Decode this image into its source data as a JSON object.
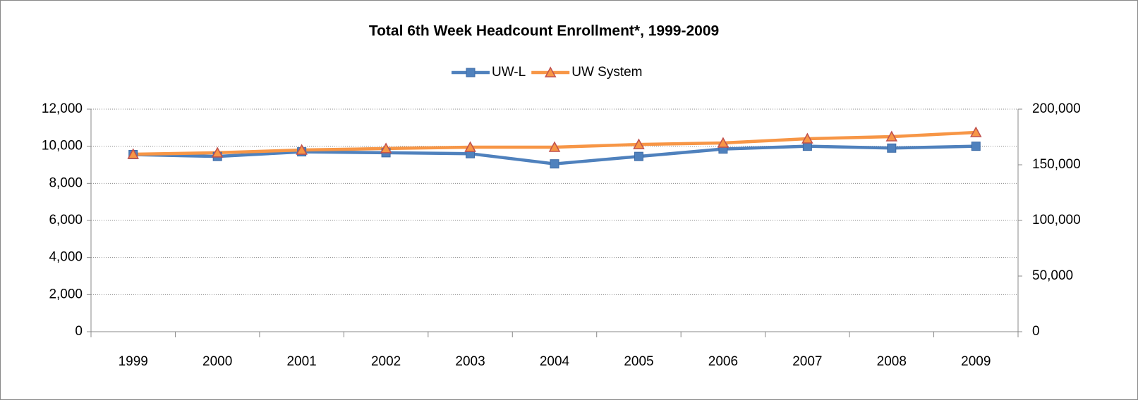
{
  "chart_data": {
    "type": "line",
    "title": "Total 6th Week Headcount Enrollment*, 1999-2009",
    "categories": [
      "1999",
      "2000",
      "2001",
      "2002",
      "2003",
      "2004",
      "2005",
      "2006",
      "2007",
      "2008",
      "2009"
    ],
    "series": [
      {
        "name": "UW-L",
        "color": "#4f81bd",
        "values": [
          9550,
          9450,
          9700,
          9650,
          9600,
          9050,
          9450,
          9850,
          10000,
          9900,
          10000
        ]
      },
      {
        "name": "UW System",
        "color": "#f79646",
        "axis": "y2",
        "values": [
          159500,
          160800,
          163300,
          164600,
          165800,
          165800,
          168300,
          169600,
          173400,
          175300,
          179100
        ]
      }
    ],
    "ylim": [
      0,
      12000
    ],
    "yticks": [
      0,
      {
        "value": 2000,
        "label": "2,000"
      },
      {
        "value": 4000,
        "label": "4,000"
      },
      {
        "value": 6000,
        "label": "6,000"
      },
      {
        "value": 8000,
        "label": "8,000"
      },
      {
        "value": 10000,
        "label": "10,000"
      },
      {
        "value": 12000,
        "label": "12,000"
      }
    ],
    "y2lim": [
      0,
      200000
    ],
    "y2ticks": [
      0,
      {
        "value": 50000,
        "label": "50,000"
      },
      {
        "value": 100000,
        "label": "100,000"
      },
      {
        "value": 150000,
        "label": "150,000"
      },
      {
        "value": 200000,
        "label": "200,000"
      }
    ],
    "grid": true,
    "legend": "top"
  }
}
